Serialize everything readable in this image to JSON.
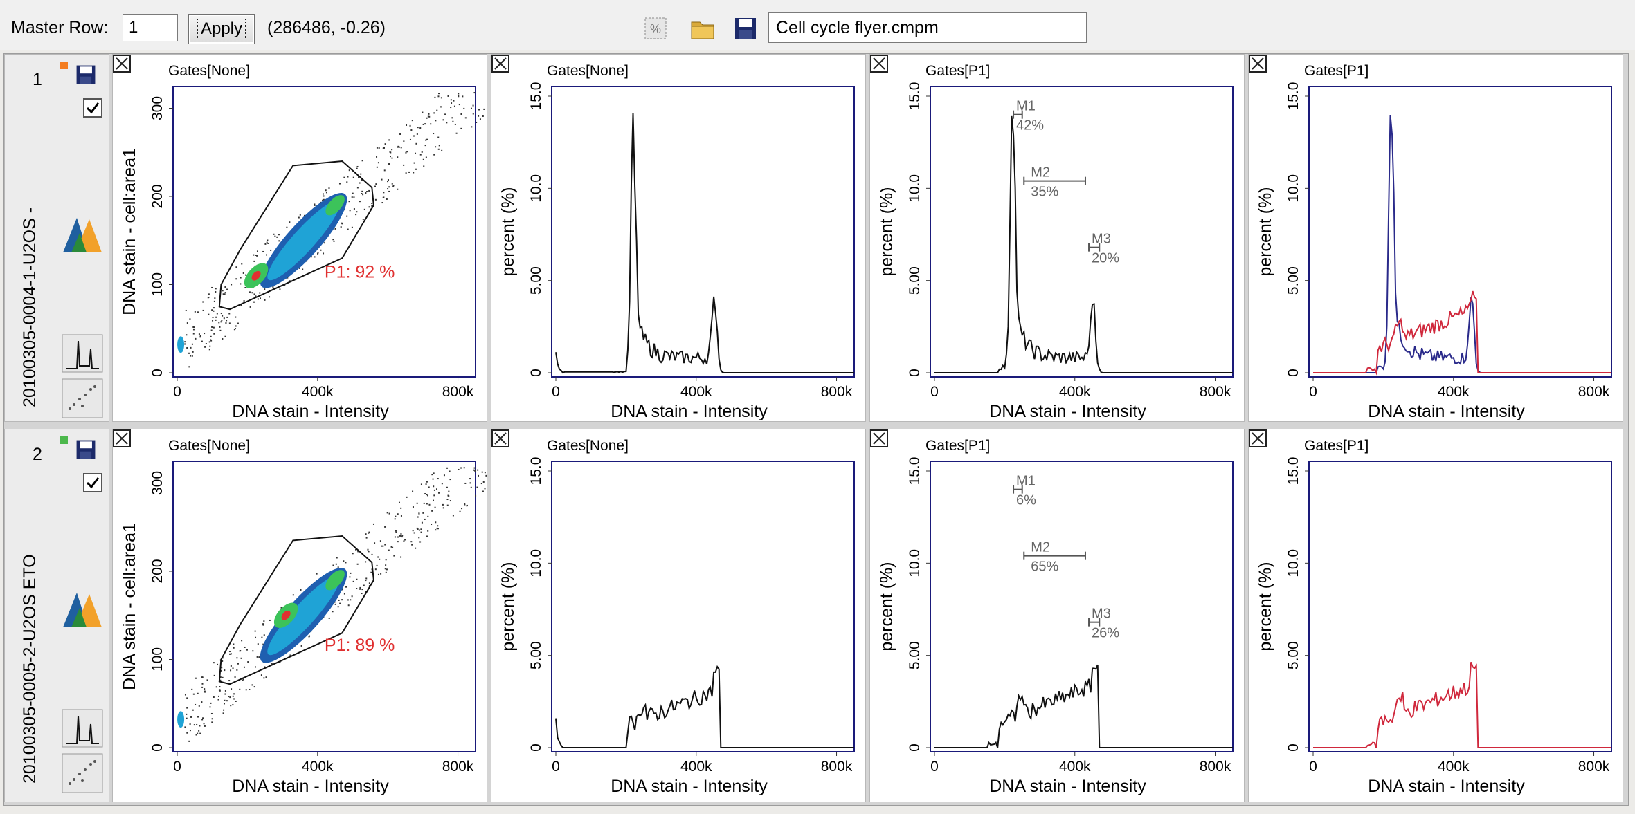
{
  "toolbar": {
    "master_row_label": "Master Row:",
    "master_row_value": "1",
    "apply_label": "Apply",
    "coordinates": "(286486, -0.26)",
    "file_name": "Cell cycle flyer.cmpm"
  },
  "rows": [
    {
      "number": "1",
      "sample": "20100305-0004-1-U2OS -",
      "status_color": "#f47d20",
      "checked": true,
      "panels": [
        {
          "type": "scatter",
          "gates": "Gates[None]",
          "xlabel": "DNA stain - Intensity",
          "ylabel": "DNA stain - cell:area1",
          "x_ticks": [
            "0",
            "400k",
            "800k"
          ],
          "y_ticks": [
            "0",
            "100",
            "200",
            "300"
          ],
          "gate_label": "P1: 92 %"
        },
        {
          "type": "histogram",
          "gates": "Gates[None]",
          "xlabel": "DNA stain - Intensity",
          "ylabel": "percent (%)",
          "x_ticks": [
            "0",
            "400k",
            "800k"
          ],
          "y_ticks": [
            "0",
            "5.00",
            "10.0",
            "15.0"
          ]
        },
        {
          "type": "histogram",
          "gates": "Gates[P1]",
          "xlabel": "DNA stain - Intensity",
          "ylabel": "percent (%)",
          "x_ticks": [
            "0",
            "400k",
            "800k"
          ],
          "y_ticks": [
            "0",
            "5.00",
            "10.0",
            "15.0"
          ],
          "markers": [
            {
              "name": "M1",
              "pct": "42%"
            },
            {
              "name": "M2",
              "pct": "35%"
            },
            {
              "name": "M3",
              "pct": "20%"
            }
          ]
        },
        {
          "type": "overlay",
          "gates": "Gates[P1]",
          "xlabel": "DNA stain - Intensity",
          "ylabel": "percent (%)",
          "x_ticks": [
            "0",
            "400k",
            "800k"
          ],
          "y_ticks": [
            "0",
            "5.00",
            "10.0",
            "15.0"
          ]
        }
      ]
    },
    {
      "number": "2",
      "sample": "20100305-0005-2-U2OS ETO",
      "status_color": "#4cb84c",
      "checked": true,
      "panels": [
        {
          "type": "scatter",
          "gates": "Gates[None]",
          "xlabel": "DNA stain - Intensity",
          "ylabel": "DNA stain - cell:area1",
          "x_ticks": [
            "0",
            "400k",
            "800k"
          ],
          "y_ticks": [
            "0",
            "100",
            "200",
            "300"
          ],
          "gate_label": "P1: 89 %"
        },
        {
          "type": "histogram",
          "gates": "Gates[None]",
          "xlabel": "DNA stain - Intensity",
          "ylabel": "percent (%)",
          "x_ticks": [
            "0",
            "400k",
            "800k"
          ],
          "y_ticks": [
            "0",
            "5.00",
            "10.0",
            "15.0"
          ]
        },
        {
          "type": "histogram",
          "gates": "Gates[P1]",
          "xlabel": "DNA stain - Intensity",
          "ylabel": "percent (%)",
          "x_ticks": [
            "0",
            "400k",
            "800k"
          ],
          "y_ticks": [
            "0",
            "5.00",
            "10.0",
            "15.0"
          ],
          "markers": [
            {
              "name": "M1",
              "pct": "6%"
            },
            {
              "name": "M2",
              "pct": "65%"
            },
            {
              "name": "M3",
              "pct": "26%"
            }
          ]
        },
        {
          "type": "overlay",
          "gates": "Gates[P1]",
          "xlabel": "DNA stain - Intensity",
          "ylabel": "percent (%)",
          "x_ticks": [
            "0",
            "400k",
            "800k"
          ],
          "y_ticks": [
            "0",
            "5.00",
            "10.0",
            "15.0"
          ]
        }
      ]
    }
  ],
  "colors": {
    "axis_frame": "#1a1a7a",
    "gate_label": "#e03030",
    "overlay_control": "#2a2a8a",
    "overlay_treated": "#d0283c",
    "marker": "#555555"
  }
}
